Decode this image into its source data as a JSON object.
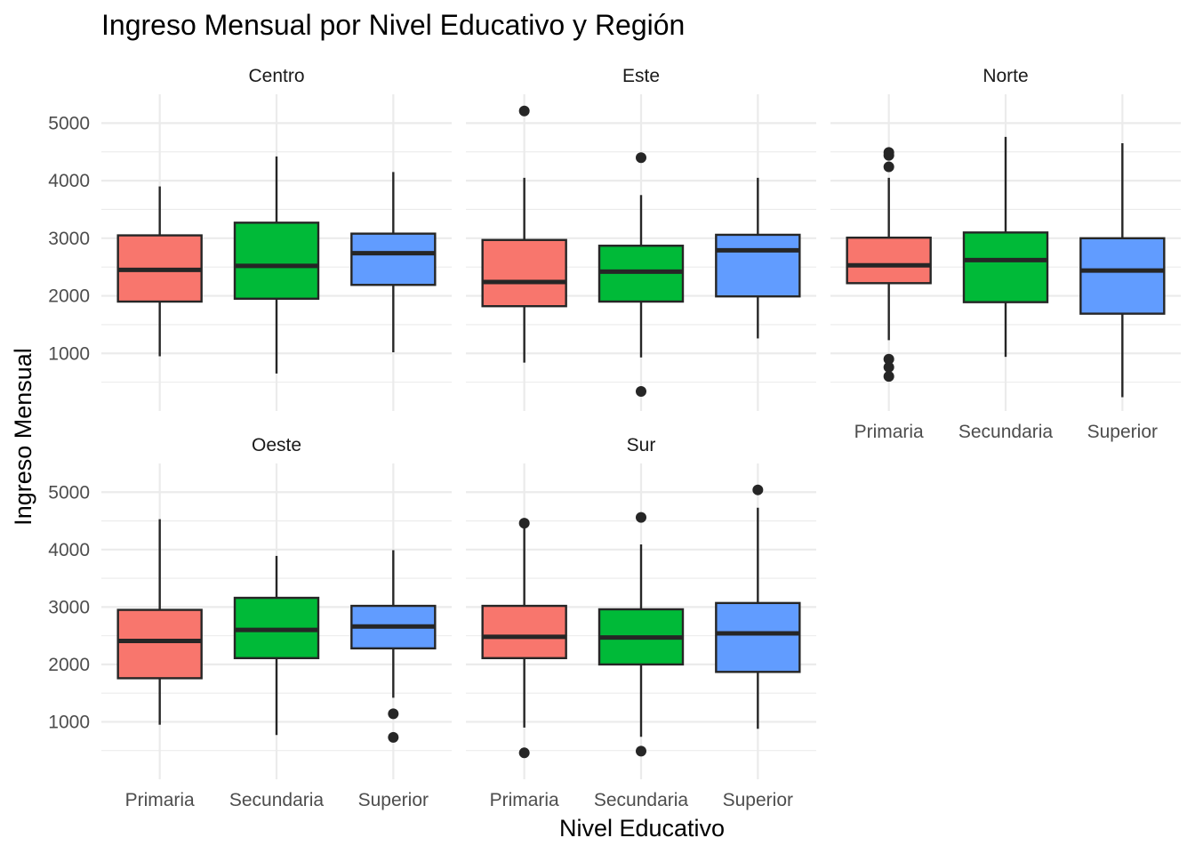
{
  "chart_data": {
    "type": "boxplot",
    "title": "Ingreso Mensual por Nivel Educativo y Región",
    "xlabel": "Nivel Educativo",
    "ylabel": "Ingreso Mensual",
    "ylim": [
      0,
      5500
    ],
    "yticks": [
      1000,
      2000,
      3000,
      4000,
      5000
    ],
    "categories": [
      "Primaria",
      "Secundaria",
      "Superior"
    ],
    "colors": {
      "Primaria": "#F8766D",
      "Secundaria": "#00BA38",
      "Superior": "#619CFF"
    },
    "grid": true,
    "facets": [
      {
        "name": "Centro",
        "boxes": [
          {
            "category": "Primaria",
            "min": 950,
            "q1": 1900,
            "median": 2450,
            "q3": 3050,
            "max": 3900,
            "outliers": []
          },
          {
            "category": "Secundaria",
            "min": 650,
            "q1": 1950,
            "median": 2520,
            "q3": 3270,
            "max": 4420,
            "outliers": []
          },
          {
            "category": "Superior",
            "min": 1020,
            "q1": 2190,
            "median": 2740,
            "q3": 3080,
            "max": 4150,
            "outliers": []
          }
        ]
      },
      {
        "name": "Este",
        "boxes": [
          {
            "category": "Primaria",
            "min": 840,
            "q1": 1820,
            "median": 2240,
            "q3": 2970,
            "max": 4050,
            "outliers": [
              5210
            ]
          },
          {
            "category": "Secundaria",
            "min": 930,
            "q1": 1900,
            "median": 2420,
            "q3": 2870,
            "max": 3750,
            "outliers": [
              4400,
              340
            ]
          },
          {
            "category": "Superior",
            "min": 1260,
            "q1": 1990,
            "median": 2790,
            "q3": 3060,
            "max": 4050,
            "outliers": []
          }
        ]
      },
      {
        "name": "Norte",
        "boxes": [
          {
            "category": "Primaria",
            "min": 1230,
            "q1": 2220,
            "median": 2530,
            "q3": 3010,
            "max": 4050,
            "outliers": [
              4490,
              4440,
              4240,
              900,
              760,
              600
            ]
          },
          {
            "category": "Secundaria",
            "min": 940,
            "q1": 1890,
            "median": 2620,
            "q3": 3100,
            "max": 4760,
            "outliers": []
          },
          {
            "category": "Superior",
            "min": 240,
            "q1": 1690,
            "median": 2440,
            "q3": 3000,
            "max": 4650,
            "outliers": []
          }
        ]
      },
      {
        "name": "Oeste",
        "boxes": [
          {
            "category": "Primaria",
            "min": 950,
            "q1": 1760,
            "median": 2410,
            "q3": 2950,
            "max": 4530,
            "outliers": []
          },
          {
            "category": "Secundaria",
            "min": 770,
            "q1": 2110,
            "median": 2600,
            "q3": 3160,
            "max": 3890,
            "outliers": []
          },
          {
            "category": "Superior",
            "min": 1420,
            "q1": 2280,
            "median": 2660,
            "q3": 3020,
            "max": 3990,
            "outliers": [
              1140,
              730
            ]
          }
        ]
      },
      {
        "name": "Sur",
        "boxes": [
          {
            "category": "Primaria",
            "min": 900,
            "q1": 2110,
            "median": 2480,
            "q3": 3020,
            "max": 4380,
            "outliers": [
              4460,
              460
            ]
          },
          {
            "category": "Secundaria",
            "min": 740,
            "q1": 2000,
            "median": 2470,
            "q3": 2960,
            "max": 4090,
            "outliers": [
              4560,
              490
            ]
          },
          {
            "category": "Superior",
            "min": 880,
            "q1": 1870,
            "median": 2540,
            "q3": 3070,
            "max": 4730,
            "outliers": [
              5040
            ]
          }
        ]
      }
    ]
  }
}
